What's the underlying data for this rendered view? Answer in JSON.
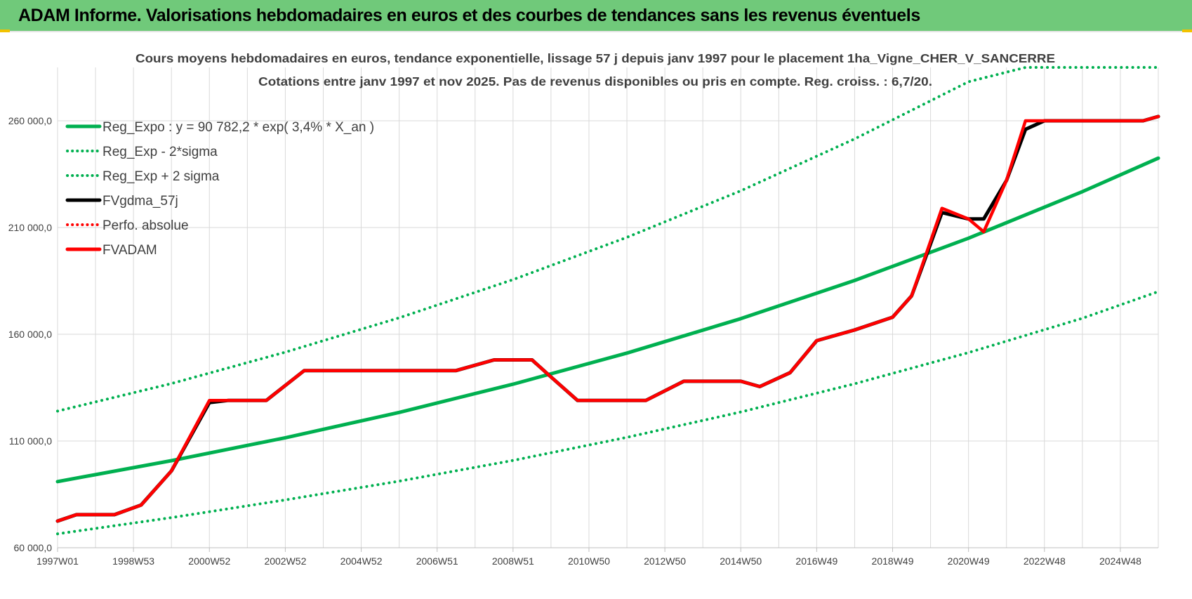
{
  "header": {
    "title": "ADAM Informe. Valorisations hebdomadaires en euros et des courbes de tendances sans les revenus éventuels"
  },
  "colors": {
    "header_bg": "#70c97a",
    "trend": "#00b050",
    "fvgdma": "#000000",
    "fvadam": "#ff0000",
    "perfo": "#ff0000",
    "grid": "#d9d9d9"
  },
  "chart_data": {
    "type": "line",
    "title_line1": "Cours moyens hebdomadaires en euros, tendance exponentielle, lissage 57 j depuis janv 1997 pour le placement 1ha_Vigne_CHER_V_SANCERRE",
    "title_line2": "Cotations entre janv 1997 et nov 2025. Pas de revenus disponibles ou pris en compte. Reg. croiss. : 6,7/20.",
    "x_range": [
      1997.0,
      2026.0
    ],
    "ylim": [
      60000,
      285000
    ],
    "y_ticks": [
      60000,
      110000,
      160000,
      210000,
      260000
    ],
    "y_tick_labels": [
      "60 000,0",
      "110 000,0",
      "160 000,0",
      "210 000,0",
      "260 000,0"
    ],
    "x_ticks": [
      1997.0,
      1999.0,
      2001.0,
      2003.0,
      2005.0,
      2007.0,
      2009.0,
      2011.0,
      2013.0,
      2015.0,
      2017.0,
      2019.0,
      2021.0,
      2023.0,
      2025.0
    ],
    "x_tick_labels": [
      "1997W01",
      "1998W53",
      "2000W52",
      "2002W52",
      "2004W52",
      "2006W51",
      "2008W51",
      "2010W50",
      "2012W50",
      "2014W50",
      "2016W49",
      "2018W49",
      "2020W49",
      "2022W48",
      "2024W48"
    ],
    "grid": "vertical and horizontal",
    "legend_position": "top-left",
    "legend": [
      {
        "key": "reg_expo",
        "label": "Reg_Expo : y = 90 782,2 * exp( 3,4% *  X_an )",
        "color": "#00b050",
        "style": "solid"
      },
      {
        "key": "reg_minus",
        "label": "Reg_Exp - 2*sigma",
        "color": "#00b050",
        "style": "dotted"
      },
      {
        "key": "reg_plus",
        "label": "Reg_Exp + 2 sigma",
        "color": "#00b050",
        "style": "dotted"
      },
      {
        "key": "fvgdma",
        "label": "FVgdma_57j",
        "color": "#000000",
        "style": "solid"
      },
      {
        "key": "perfo",
        "label": "Perfo. absolue",
        "color": "#ff0000",
        "style": "dotted"
      },
      {
        "key": "fvadam",
        "label": "FVADAM",
        "color": "#ff0000",
        "style": "solid"
      }
    ],
    "series": [
      {
        "key": "reg_expo",
        "x": [
          1997.0,
          2000.0,
          2003.0,
          2006.0,
          2009.0,
          2012.0,
          2015.0,
          2018.0,
          2021.0,
          2024.0,
          2026.0
        ],
        "y": [
          91000,
          100800,
          111500,
          123400,
          136600,
          151200,
          167300,
          185200,
          205000,
          226800,
          242500
        ]
      },
      {
        "key": "reg_minus",
        "x": [
          1997.0,
          2000.0,
          2003.0,
          2006.0,
          2009.0,
          2012.0,
          2015.0,
          2018.0,
          2021.0,
          2024.0,
          2026.0
        ],
        "y": [
          66500,
          74100,
          82400,
          91200,
          100900,
          111700,
          123600,
          136800,
          151400,
          167500,
          180000
        ]
      },
      {
        "key": "reg_plus",
        "x": [
          1997.0,
          2000.0,
          2003.0,
          2006.0,
          2009.0,
          2012.0,
          2015.0,
          2018.0,
          2021.0,
          2022.5,
          2023.0,
          2026.0
        ],
        "y": [
          124000,
          136900,
          151600,
          167700,
          185600,
          205400,
          227200,
          251500,
          278300,
          285000,
          285000,
          285000
        ]
      },
      {
        "key": "fvgdma",
        "x": [
          1997.0,
          1997.5,
          1998.5,
          1999.2,
          2000.0,
          2001.0,
          2001.5,
          2002.5,
          2003.5,
          2004.5,
          2006.0,
          2007.5,
          2008.5,
          2009.5,
          2010.0,
          2010.7,
          2011.3,
          2012.5,
          2013.5,
          2014.3,
          2015.0,
          2015.5,
          2016.3,
          2017.0,
          2018.0,
          2019.0,
          2019.5,
          2020.3,
          2021.0,
          2021.4,
          2022.0,
          2022.5,
          2023.0,
          2024.0,
          2025.6,
          2026.0
        ],
        "y": [
          72500,
          75500,
          75500,
          80000,
          96000,
          128000,
          129000,
          129000,
          143000,
          143000,
          143000,
          143000,
          148000,
          148000,
          140000,
          129000,
          129000,
          129000,
          138000,
          138000,
          138000,
          135500,
          142000,
          157000,
          162000,
          168000,
          178000,
          217000,
          214000,
          214000,
          232000,
          256000,
          260000,
          260000,
          260000,
          262000
        ]
      },
      {
        "key": "fvadam",
        "x": [
          1997.0,
          1997.5,
          1998.5,
          1999.2,
          2000.0,
          2001.0,
          2001.5,
          2002.5,
          2003.5,
          2004.5,
          2006.0,
          2007.5,
          2008.5,
          2009.5,
          2010.0,
          2010.7,
          2011.3,
          2012.5,
          2013.5,
          2014.3,
          2015.0,
          2015.5,
          2016.3,
          2017.0,
          2018.0,
          2019.0,
          2019.5,
          2020.3,
          2021.0,
          2021.4,
          2022.0,
          2022.5,
          2023.0,
          2024.0,
          2025.6,
          2026.0
        ],
        "y": [
          72500,
          75500,
          75500,
          80000,
          96000,
          129000,
          129000,
          129000,
          143000,
          143000,
          143000,
          143000,
          148000,
          148000,
          140000,
          129000,
          129000,
          129000,
          138000,
          138000,
          138000,
          135500,
          142000,
          157000,
          162000,
          168000,
          178000,
          219000,
          214000,
          208000,
          232000,
          260000,
          260000,
          260000,
          260000,
          262000
        ]
      }
    ]
  }
}
